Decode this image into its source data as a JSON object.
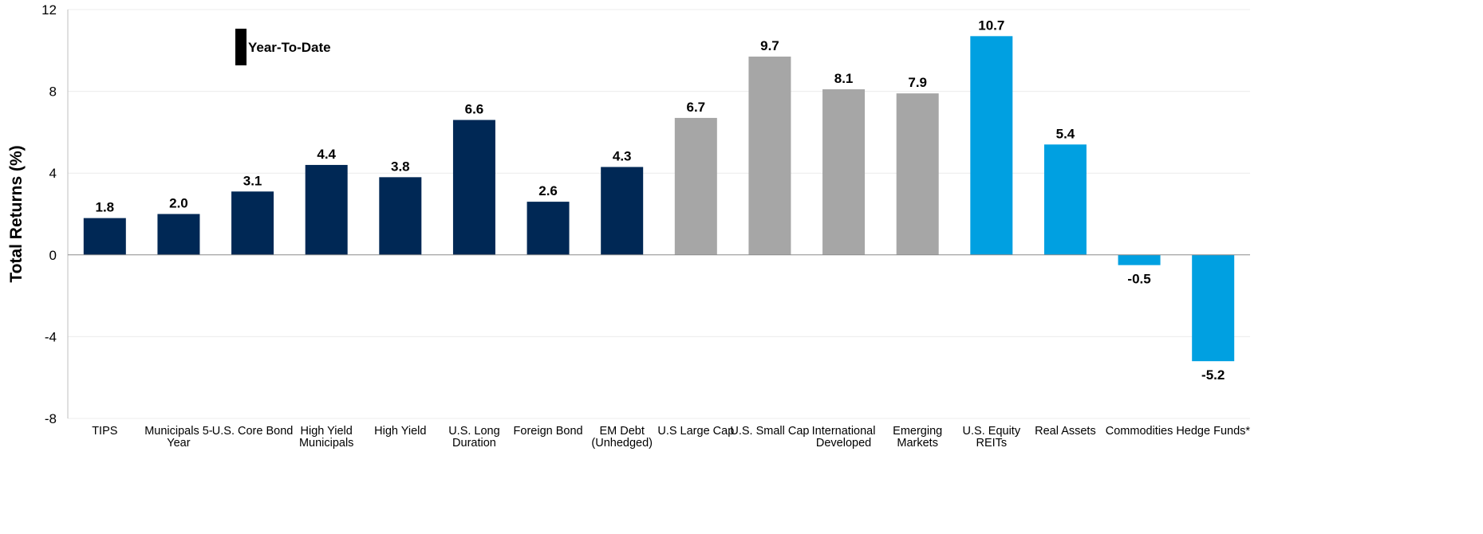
{
  "chart_data": {
    "type": "bar",
    "ylabel": "Total Returns (%)",
    "ylim": [
      -8,
      12
    ],
    "yticks": [
      -8,
      -4,
      0,
      4,
      8,
      12
    ],
    "grid": true,
    "legend": {
      "label": "Year-To-Date",
      "placement": "top-left",
      "color": "#000000"
    },
    "categories": [
      "TIPS",
      "Municipals 5-\nYear",
      "U.S. Core Bond",
      "High Yield\nMunicipals",
      "High Yield",
      "U.S. Long\nDuration",
      "Foreign Bond",
      "EM Debt\n(Unhedged)",
      "U.S Large Cap",
      "U.S. Small Cap",
      "International\nDeveloped",
      "Emerging\nMarkets",
      "U.S. Equity\nREITs",
      "Real Assets",
      "Commodities",
      "Hedge Funds*"
    ],
    "values": [
      1.8,
      2.0,
      3.1,
      4.4,
      3.8,
      6.6,
      2.6,
      4.3,
      6.7,
      9.7,
      8.1,
      7.9,
      10.7,
      5.4,
      -0.5,
      -5.2
    ],
    "data_labels": [
      "1.8",
      "2.0",
      "3.1",
      "4.4",
      "3.8",
      "6.6",
      "2.6",
      "4.3",
      "6.7",
      "9.7",
      "8.1",
      "7.9",
      "10.7",
      "5.4",
      "-0.5",
      "-5.2"
    ],
    "bar_colors": [
      "#002855",
      "#002855",
      "#002855",
      "#002855",
      "#002855",
      "#002855",
      "#002855",
      "#002855",
      "#A6A6A6",
      "#A6A6A6",
      "#A6A6A6",
      "#A6A6A6",
      "#00A0E1",
      "#00A0E1",
      "#00A0E1",
      "#00A0E1"
    ]
  }
}
